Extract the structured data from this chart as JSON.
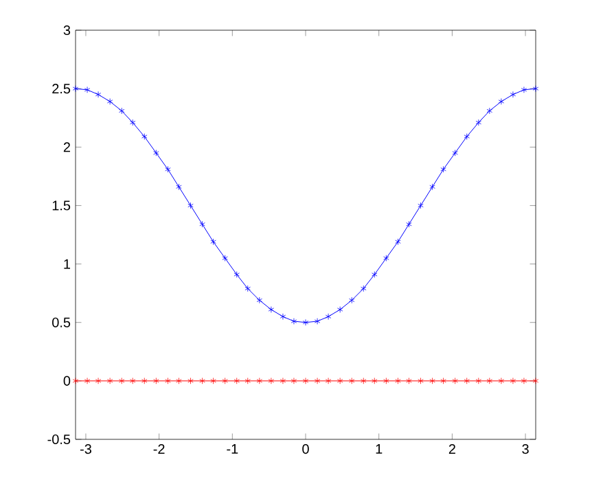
{
  "chart_data": {
    "type": "line",
    "marker": "cross",
    "xlim": [
      -3.14,
      3.14
    ],
    "ylim": [
      -0.5,
      3
    ],
    "xticks": [
      -3,
      -2,
      -1,
      0,
      1,
      2,
      3
    ],
    "yticks": [
      -0.5,
      0,
      0.5,
      1,
      1.5,
      2,
      2.5,
      3
    ],
    "grid": false,
    "series": [
      {
        "color": "#0000ff",
        "x": [
          -3.14,
          -2.98,
          -2.83,
          -2.67,
          -2.51,
          -2.36,
          -2.2,
          -2.04,
          -1.88,
          -1.73,
          -1.57,
          -1.41,
          -1.26,
          -1.1,
          -0.94,
          -0.79,
          -0.63,
          -0.47,
          -0.31,
          -0.16,
          0,
          0.16,
          0.31,
          0.47,
          0.63,
          0.79,
          0.94,
          1.1,
          1.26,
          1.41,
          1.57,
          1.73,
          1.88,
          2.04,
          2.2,
          2.36,
          2.51,
          2.67,
          2.83,
          2.98,
          3.14
        ],
        "values": [
          2.5,
          2.49,
          2.45,
          2.39,
          2.31,
          2.21,
          2.09,
          1.95,
          1.81,
          1.66,
          1.5,
          1.34,
          1.19,
          1.05,
          0.91,
          0.79,
          0.69,
          0.61,
          0.55,
          0.51,
          0.5,
          0.51,
          0.55,
          0.61,
          0.69,
          0.79,
          0.91,
          1.05,
          1.19,
          1.34,
          1.5,
          1.66,
          1.81,
          1.95,
          2.09,
          2.21,
          2.31,
          2.39,
          2.45,
          2.49,
          2.5
        ]
      },
      {
        "color": "#ff0000",
        "x": [
          -3.14,
          -2.98,
          -2.83,
          -2.67,
          -2.51,
          -2.36,
          -2.2,
          -2.04,
          -1.88,
          -1.73,
          -1.57,
          -1.41,
          -1.26,
          -1.1,
          -0.94,
          -0.79,
          -0.63,
          -0.47,
          -0.31,
          -0.16,
          0,
          0.16,
          0.31,
          0.47,
          0.63,
          0.79,
          0.94,
          1.1,
          1.26,
          1.41,
          1.57,
          1.73,
          1.88,
          2.04,
          2.2,
          2.36,
          2.51,
          2.67,
          2.83,
          2.98,
          3.14
        ],
        "values": [
          0,
          0,
          0,
          0,
          0,
          0,
          0,
          0,
          0,
          0,
          0,
          0,
          0,
          0,
          0,
          0,
          0,
          0,
          0,
          0,
          0,
          0,
          0,
          0,
          0,
          0,
          0,
          0,
          0,
          0,
          0,
          0,
          0,
          0,
          0,
          0,
          0,
          0,
          0,
          0,
          0
        ]
      }
    ]
  }
}
